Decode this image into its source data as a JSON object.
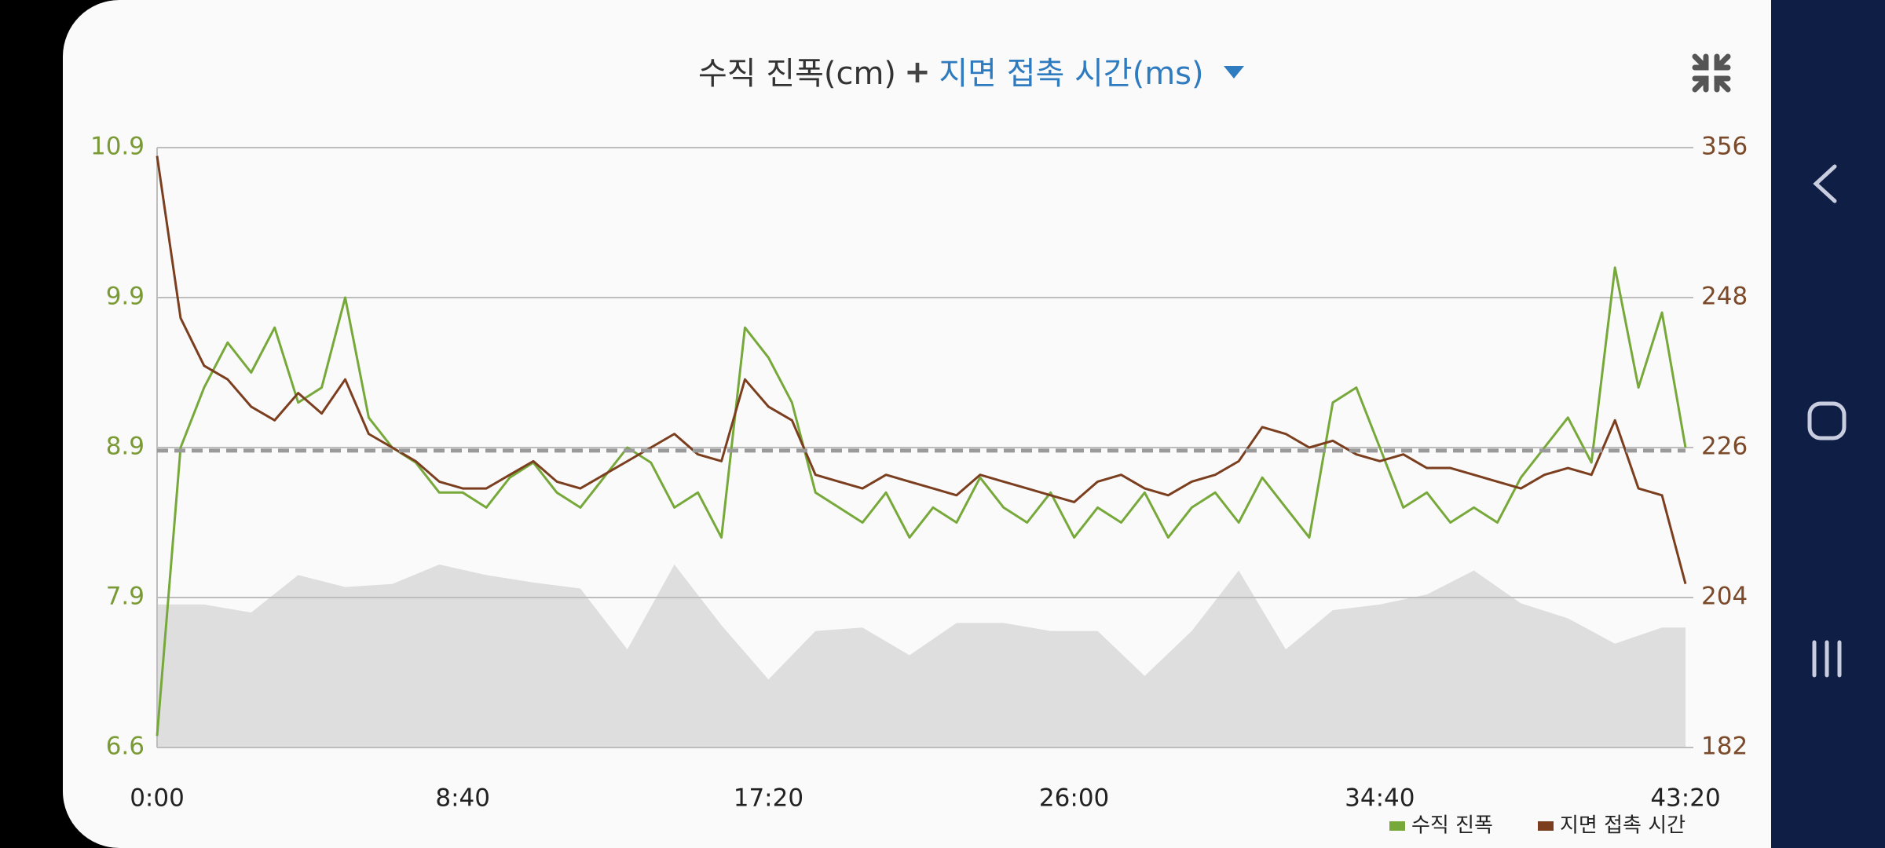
{
  "chart_data": {
    "type": "line",
    "title": [
      "수직 진폭(cm)",
      "+",
      "지면 접촉 시간(ms)"
    ],
    "xlim": [
      0,
      2600
    ],
    "xticks": [
      {
        "value": 0,
        "label": "0:00"
      },
      {
        "value": 520,
        "label": "8:40"
      },
      {
        "value": 1040,
        "label": "17:20"
      },
      {
        "value": 1560,
        "label": "26:00"
      },
      {
        "value": 2080,
        "label": "34:40"
      },
      {
        "value": 2600,
        "label": "43:20"
      }
    ],
    "ylim": [
      6.6,
      10.9
    ],
    "yticks": [
      6.6,
      7.9,
      8.9,
      9.9,
      10.9
    ],
    "y2lim": [
      182,
      356
    ],
    "y2ticks": [
      182,
      204,
      226,
      248,
      356
    ],
    "y_color": "#7a9a36",
    "y2_color": "#7b4a2a",
    "grid": true,
    "legend": "bottom-right",
    "series": [
      {
        "name": "수직 진폭",
        "color": "#77a83a",
        "axis": "y",
        "x": [
          0,
          40,
          80,
          120,
          160,
          200,
          240,
          280,
          320,
          360,
          400,
          440,
          480,
          520,
          560,
          600,
          640,
          680,
          720,
          760,
          800,
          840,
          880,
          920,
          960,
          1000,
          1040,
          1080,
          1120,
          1160,
          1200,
          1240,
          1280,
          1320,
          1360,
          1400,
          1440,
          1480,
          1520,
          1560,
          1600,
          1640,
          1680,
          1720,
          1760,
          1800,
          1840,
          1880,
          1920,
          1960,
          2000,
          2040,
          2080,
          2120,
          2160,
          2200,
          2240,
          2280,
          2320,
          2360,
          2400,
          2440,
          2480,
          2520,
          2560,
          2600
        ],
        "values": [
          6.7,
          8.9,
          9.3,
          9.6,
          9.4,
          9.7,
          9.2,
          9.3,
          9.9,
          9.1,
          8.9,
          8.8,
          8.6,
          8.6,
          8.5,
          8.7,
          8.8,
          8.6,
          8.5,
          8.7,
          8.9,
          8.8,
          8.5,
          8.6,
          8.3,
          9.7,
          9.5,
          9.2,
          8.6,
          8.5,
          8.4,
          8.6,
          8.3,
          8.5,
          8.4,
          8.7,
          8.5,
          8.4,
          8.6,
          8.3,
          8.5,
          8.4,
          8.6,
          8.3,
          8.5,
          8.6,
          8.4,
          8.7,
          8.5,
          8.3,
          9.2,
          9.3,
          8.9,
          8.5,
          8.6,
          8.4,
          8.5,
          8.4,
          8.7,
          8.9,
          9.1,
          8.8,
          10.1,
          9.3,
          9.8,
          8.9
        ]
      },
      {
        "name": "지면 접촉 시간",
        "color": "#7b3f1f",
        "axis": "y2",
        "x": [
          0,
          40,
          80,
          120,
          160,
          200,
          240,
          280,
          320,
          360,
          400,
          440,
          480,
          520,
          560,
          600,
          640,
          680,
          720,
          760,
          800,
          840,
          880,
          920,
          960,
          1000,
          1040,
          1080,
          1120,
          1160,
          1200,
          1240,
          1280,
          1320,
          1360,
          1400,
          1440,
          1480,
          1520,
          1560,
          1600,
          1640,
          1680,
          1720,
          1760,
          1800,
          1840,
          1880,
          1920,
          1960,
          2000,
          2040,
          2080,
          2120,
          2160,
          2200,
          2240,
          2280,
          2320,
          2360,
          2400,
          2440,
          2480,
          2520,
          2560,
          2600
        ],
        "values": [
          350,
          245,
          238,
          236,
          232,
          230,
          234,
          231,
          236,
          228,
          226,
          224,
          221,
          220,
          220,
          222,
          224,
          221,
          220,
          222,
          224,
          226,
          228,
          225,
          224,
          236,
          232,
          230,
          222,
          221,
          220,
          222,
          221,
          220,
          219,
          222,
          221,
          220,
          219,
          218,
          221,
          222,
          220,
          219,
          221,
          222,
          224,
          229,
          228,
          226,
          227,
          225,
          224,
          225,
          223,
          223,
          222,
          221,
          220,
          222,
          223,
          222,
          230,
          220,
          219,
          206
        ]
      }
    ],
    "reference_line": {
      "value": 8.88,
      "axis": "y",
      "color": "#9a9a9a"
    },
    "background_area": {
      "color": "#dedede",
      "axis": "y",
      "x": [
        0,
        80,
        160,
        240,
        320,
        400,
        480,
        560,
        640,
        720,
        800,
        880,
        960,
        1040,
        1120,
        1200,
        1280,
        1360,
        1440,
        1520,
        1600,
        1680,
        1760,
        1840,
        1920,
        2000,
        2080,
        2160,
        2240,
        2320,
        2400,
        2480,
        2560,
        2600
      ],
      "values": [
        7.84,
        7.84,
        7.77,
        8.05,
        7.97,
        7.99,
        8.12,
        8.05,
        8.0,
        7.96,
        7.45,
        8.12,
        7.66,
        7.19,
        7.61,
        7.64,
        7.4,
        7.68,
        7.68,
        7.61,
        7.61,
        7.22,
        7.61,
        8.08,
        7.45,
        7.79,
        7.84,
        7.92,
        8.08,
        7.85,
        7.72,
        7.5,
        7.64,
        7.64
      ]
    }
  }
}
